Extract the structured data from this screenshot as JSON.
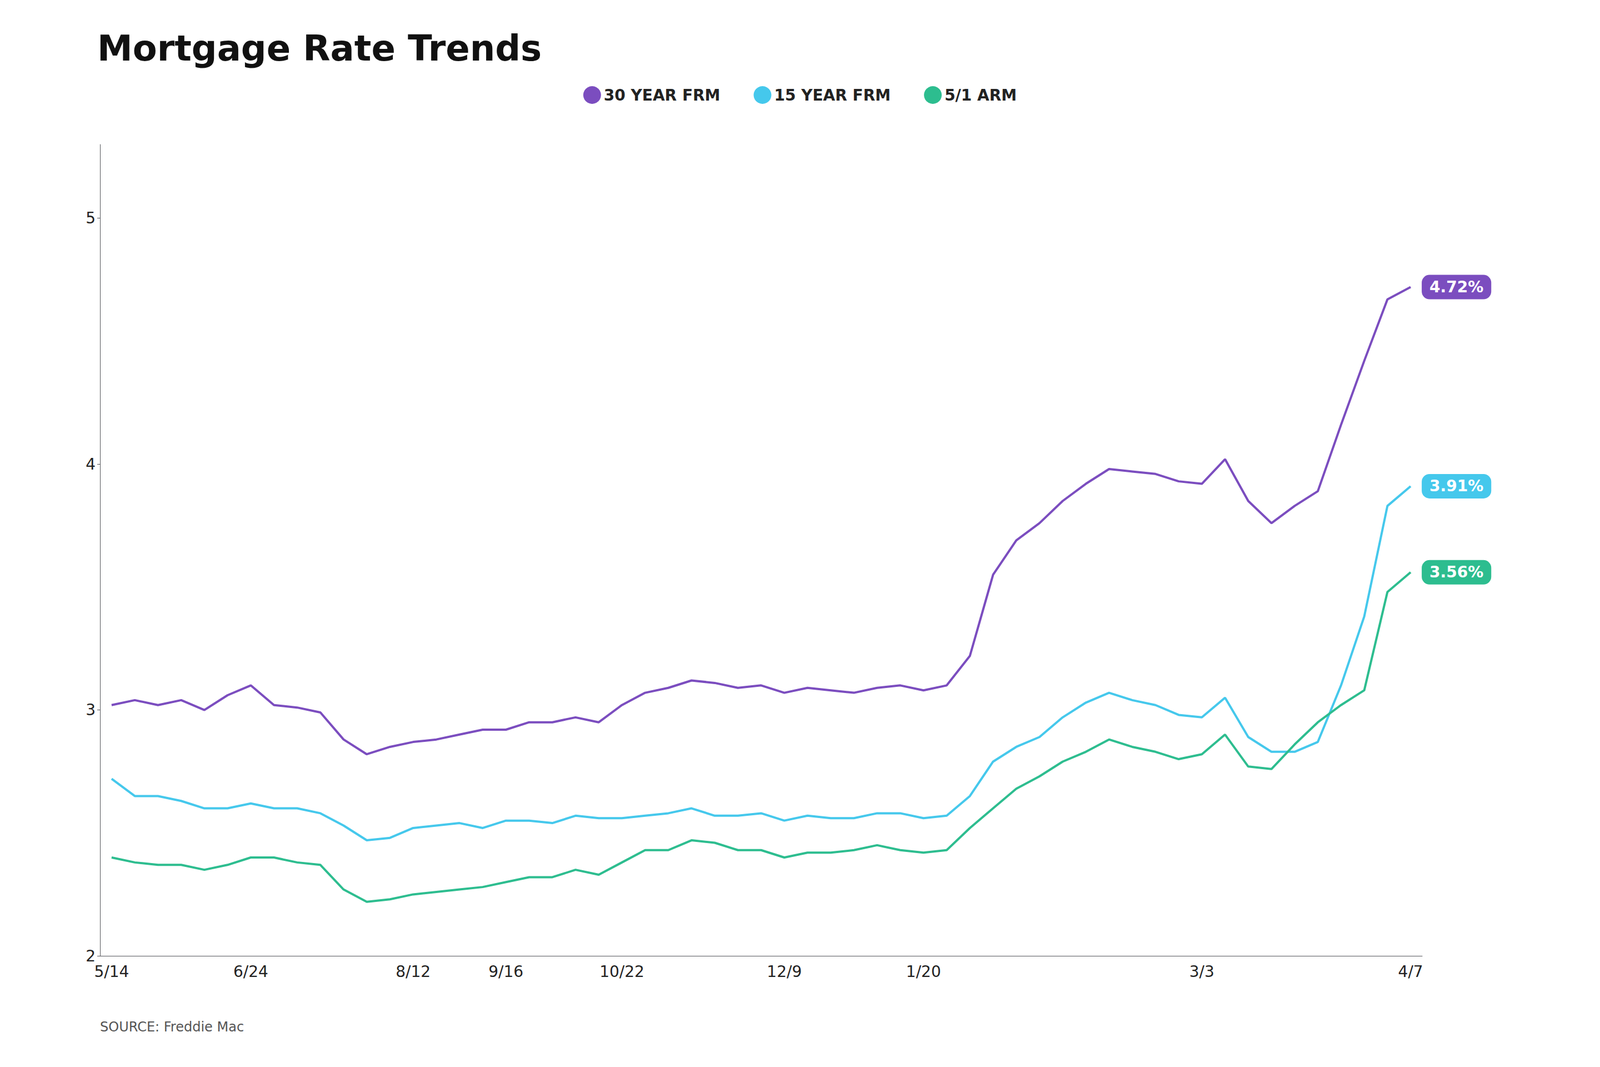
{
  "chart_data": {
    "type": "line",
    "title": "Mortgage Rate Trends",
    "categories": [
      "5/14",
      null,
      null,
      null,
      null,
      null,
      "6/24",
      null,
      null,
      null,
      null,
      null,
      null,
      "8/12",
      null,
      null,
      null,
      "9/16",
      null,
      null,
      null,
      null,
      "10/22",
      null,
      null,
      null,
      null,
      null,
      null,
      "12/9",
      null,
      null,
      null,
      null,
      null,
      "1/20",
      null,
      null,
      null,
      null,
      null,
      null,
      null,
      null,
      null,
      null,
      null,
      "3/3",
      null,
      null,
      null,
      null,
      null,
      null,
      null,
      null,
      "4/7"
    ],
    "series": [
      {
        "name": "30 YEAR FRM",
        "color": "#7B4DBF",
        "end_label": "4.72%",
        "values": [
          3.02,
          3.04,
          3.02,
          3.04,
          3.0,
          3.06,
          3.1,
          3.02,
          3.01,
          2.99,
          2.88,
          2.82,
          2.85,
          2.87,
          2.88,
          2.9,
          2.92,
          2.92,
          2.95,
          2.95,
          2.97,
          2.95,
          3.02,
          3.07,
          3.09,
          3.12,
          3.11,
          3.09,
          3.1,
          3.07,
          3.09,
          3.08,
          3.07,
          3.09,
          3.1,
          3.08,
          3.1,
          3.22,
          3.55,
          3.69,
          3.76,
          3.85,
          3.92,
          3.98,
          3.97,
          3.96,
          3.93,
          3.92,
          4.02,
          3.85,
          3.76,
          3.83,
          3.89,
          4.16,
          4.42,
          4.67,
          4.72
        ]
      },
      {
        "name": "15 YEAR FRM",
        "color": "#45C8EC",
        "end_label": "3.91%",
        "values": [
          2.72,
          2.65,
          2.65,
          2.63,
          2.6,
          2.6,
          2.62,
          2.6,
          2.6,
          2.58,
          2.53,
          2.47,
          2.48,
          2.52,
          2.53,
          2.54,
          2.52,
          2.55,
          2.55,
          2.54,
          2.57,
          2.56,
          2.56,
          2.57,
          2.58,
          2.6,
          2.57,
          2.57,
          2.58,
          2.55,
          2.57,
          2.56,
          2.56,
          2.58,
          2.58,
          2.56,
          2.57,
          2.65,
          2.79,
          2.85,
          2.89,
          2.97,
          3.03,
          3.07,
          3.04,
          3.02,
          2.98,
          2.97,
          3.05,
          2.89,
          2.83,
          2.83,
          2.87,
          3.1,
          3.38,
          3.83,
          3.91
        ]
      },
      {
        "name": "5/1 ARM",
        "color": "#2DBD8F",
        "end_label": "3.56%",
        "values": [
          2.4,
          2.38,
          2.37,
          2.37,
          2.35,
          2.37,
          2.4,
          2.4,
          2.38,
          2.37,
          2.27,
          2.22,
          2.23,
          2.25,
          2.26,
          2.27,
          2.28,
          2.3,
          2.32,
          2.32,
          2.35,
          2.33,
          2.38,
          2.43,
          2.43,
          2.47,
          2.46,
          2.43,
          2.43,
          2.4,
          2.42,
          2.42,
          2.43,
          2.45,
          2.43,
          2.42,
          2.43,
          2.52,
          2.6,
          2.68,
          2.73,
          2.79,
          2.83,
          2.88,
          2.85,
          2.83,
          2.8,
          2.82,
          2.9,
          2.77,
          2.76,
          2.86,
          2.95,
          3.02,
          3.08,
          3.48,
          3.56
        ]
      }
    ],
    "ylim": [
      2.0,
      5.3
    ],
    "yticks": [
      2,
      3,
      4,
      5
    ],
    "grid": false,
    "legend": "top",
    "annotations": [
      "SOURCE: Freddie Mac"
    ]
  }
}
